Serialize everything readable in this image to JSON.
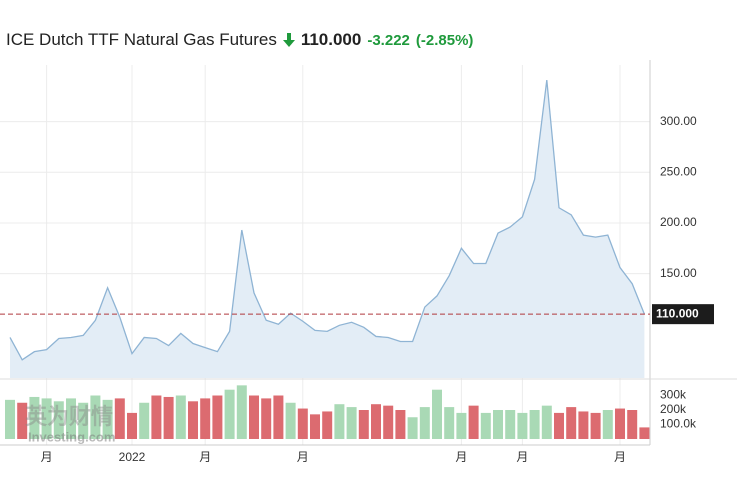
{
  "header": {
    "title": "ICE Dutch TTF Natural Gas Futures",
    "price": "110.000",
    "change": "-3.222",
    "change_percent": "(-2.85%)"
  },
  "watermark": {
    "brand": "英为财情",
    "site": "Investing.com"
  },
  "chart_data": {
    "type": "area",
    "categories": [
      null,
      null,
      null,
      "月",
      null,
      null,
      null,
      null,
      null,
      null,
      "2022",
      null,
      null,
      null,
      null,
      null,
      "月",
      null,
      null,
      null,
      null,
      null,
      null,
      null,
      "月",
      null,
      null,
      null,
      null,
      null,
      null,
      null,
      null,
      null,
      null,
      null,
      null,
      "月",
      null,
      null,
      null,
      null,
      "月",
      null,
      null,
      null,
      null,
      null,
      null,
      null,
      "月",
      null,
      null
    ],
    "series": [
      {
        "name": "price",
        "type": "area",
        "color": "#8fb4d4",
        "fill": "#e3edf6",
        "values": [
          87,
          65,
          73,
          75,
          86,
          87,
          89,
          104,
          136,
          107,
          71,
          87,
          86,
          79,
          91,
          81,
          77,
          73,
          93,
          193,
          131,
          104,
          100,
          111,
          103,
          94,
          93,
          99,
          102,
          97,
          88,
          87,
          83,
          83,
          117,
          128,
          148,
          175,
          160,
          160,
          190,
          196,
          206,
          243,
          341,
          215,
          208,
          188,
          186,
          188,
          156,
          140,
          110
        ]
      },
      {
        "name": "volume",
        "type": "bar",
        "axis": "y2",
        "up_color": "#a9d9b5",
        "down_color": "#dc6b70",
        "values": [
          270000,
          250000,
          290000,
          280000,
          260000,
          280000,
          250000,
          300000,
          270000,
          280000,
          180000,
          250000,
          300000,
          290000,
          300000,
          260000,
          280000,
          300000,
          340000,
          370000,
          300000,
          280000,
          300000,
          250000,
          210000,
          170000,
          190000,
          240000,
          220000,
          200000,
          240000,
          230000,
          200000,
          150000,
          220000,
          340000,
          220000,
          180000,
          230000,
          180000,
          200000,
          200000,
          180000,
          200000,
          230000,
          180000,
          220000,
          190000,
          180000,
          200000,
          210000,
          200000,
          80000
        ]
      }
    ],
    "ylim": [
      47,
      346
    ],
    "yticks": [
      {
        "value": 150,
        "label": "150.00"
      },
      {
        "value": 200,
        "label": "200.00"
      },
      {
        "value": 250,
        "label": "250.00"
      },
      {
        "value": 300,
        "label": "300.00"
      }
    ],
    "y2lim": [
      0,
      400000
    ],
    "y2ticks": [
      {
        "value": 100000,
        "label": "100.0k"
      },
      {
        "value": 200000,
        "label": "200k"
      },
      {
        "value": 300000,
        "label": "300k"
      }
    ],
    "current": {
      "value": 110,
      "label": "110.000",
      "color": "#b0393e"
    },
    "grid": true
  }
}
